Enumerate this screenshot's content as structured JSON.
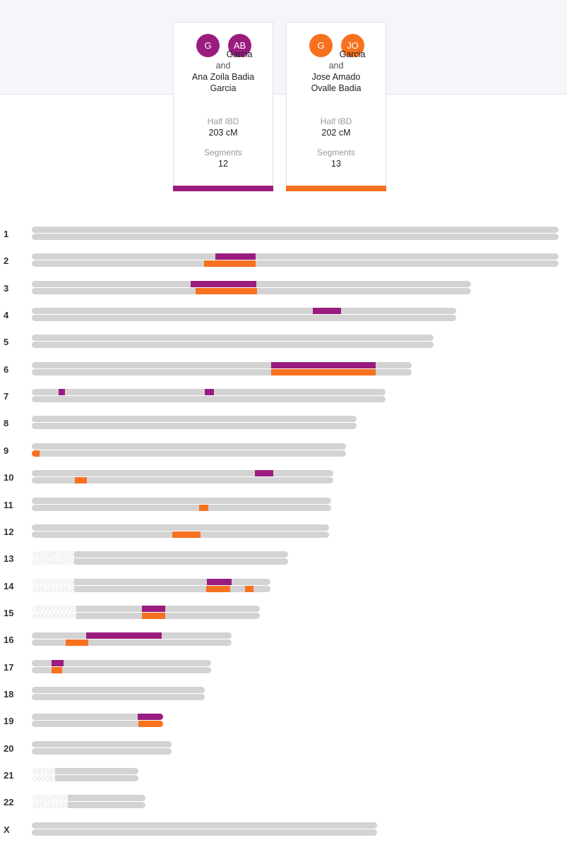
{
  "colors": {
    "purple": "#9b1c7f",
    "orange": "#f7711f",
    "strand": "#d3d3d3"
  },
  "cards": [
    {
      "avatars": [
        "G",
        "AB"
      ],
      "line1": "Garcia",
      "and": "and",
      "line2": "Ana Zoila Badia",
      "line3": "Garcia",
      "ibd_label": "Half IBD",
      "ibd_value": "203 cM",
      "seg_label": "Segments",
      "seg_value": "12"
    },
    {
      "avatars": [
        "G",
        "JO"
      ],
      "line1": "Garcia",
      "and": "and",
      "line2": "Jose Amado",
      "line3": "Ovalle Badia",
      "ibd_label": "Half IBD",
      "ibd_value": "202 cM",
      "seg_label": "Segments",
      "seg_value": "13"
    }
  ],
  "chromosomes": [
    {
      "label": "1",
      "length": 1.0,
      "hatch": 0,
      "top": [],
      "bottom": []
    },
    {
      "label": "2",
      "length": 1.0,
      "hatch": 0,
      "top": [
        [
          0.348,
          0.425
        ]
      ],
      "bottom": [
        [
          0.327,
          0.425
        ]
      ]
    },
    {
      "label": "3",
      "length": 0.834,
      "hatch": 0,
      "top": [
        [
          0.302,
          0.427
        ]
      ],
      "bottom": [
        [
          0.311,
          0.427
        ]
      ]
    },
    {
      "label": "4",
      "length": 0.806,
      "hatch": 0,
      "top": [
        [
          0.533,
          0.586
        ]
      ],
      "bottom": []
    },
    {
      "label": "5",
      "length": 0.763,
      "hatch": 0,
      "top": [],
      "bottom": []
    },
    {
      "label": "6",
      "length": 0.721,
      "hatch": 0,
      "top": [
        [
          0.454,
          0.653
        ]
      ],
      "bottom": [
        [
          0.454,
          0.653
        ]
      ]
    },
    {
      "label": "7",
      "length": 0.672,
      "hatch": 0,
      "top": [
        [
          0.051,
          0.063
        ],
        [
          0.329,
          0.347
        ]
      ],
      "bottom": []
    },
    {
      "label": "8",
      "length": 0.617,
      "hatch": 0,
      "top": [],
      "bottom": []
    },
    {
      "label": "9",
      "length": 0.596,
      "hatch": 0,
      "top": [],
      "bottom": [
        [
          0.0,
          0.015
        ]
      ]
    },
    {
      "label": "10",
      "length": 0.572,
      "hatch": 0,
      "top": [
        [
          0.423,
          0.458
        ]
      ],
      "bottom": [
        [
          0.082,
          0.105
        ]
      ]
    },
    {
      "label": "11",
      "length": 0.569,
      "hatch": 0,
      "top": [],
      "bottom": [
        [
          0.318,
          0.335
        ]
      ]
    },
    {
      "label": "12",
      "length": 0.565,
      "hatch": 0,
      "top": [],
      "bottom": [
        [
          0.267,
          0.321
        ]
      ]
    },
    {
      "label": "13",
      "length": 0.486,
      "hatch": 0.081,
      "top": [],
      "bottom": []
    },
    {
      "label": "14",
      "length": 0.453,
      "hatch": 0.081,
      "top": [
        [
          0.332,
          0.379
        ]
      ],
      "bottom": [
        [
          0.331,
          0.377
        ],
        [
          0.405,
          0.421
        ]
      ]
    },
    {
      "label": "15",
      "length": 0.433,
      "hatch": 0.085,
      "top": [
        [
          0.209,
          0.253
        ]
      ],
      "bottom": [
        [
          0.209,
          0.253
        ]
      ]
    },
    {
      "label": "16",
      "length": 0.38,
      "hatch": 0,
      "top": [
        [
          0.103,
          0.247
        ]
      ],
      "bottom": [
        [
          0.064,
          0.107
        ]
      ]
    },
    {
      "label": "17",
      "length": 0.341,
      "hatch": 0,
      "top": [
        [
          0.038,
          0.061
        ]
      ],
      "bottom": [
        [
          0.038,
          0.058
        ]
      ]
    },
    {
      "label": "18",
      "length": 0.329,
      "hatch": 0,
      "top": [],
      "bottom": []
    },
    {
      "label": "19",
      "length": 0.249,
      "hatch": 0,
      "top": [
        [
          0.201,
          0.249
        ]
      ],
      "bottom": [
        [
          0.202,
          0.249
        ]
      ]
    },
    {
      "label": "20",
      "length": 0.265,
      "hatch": 0,
      "top": [],
      "bottom": []
    },
    {
      "label": "21",
      "length": 0.202,
      "hatch": 0.044,
      "top": [],
      "bottom": []
    },
    {
      "label": "22",
      "length": 0.216,
      "hatch": 0.068,
      "top": [],
      "bottom": []
    },
    {
      "label": "X",
      "length": 0.655,
      "hatch": 0,
      "top": [],
      "bottom": []
    }
  ]
}
